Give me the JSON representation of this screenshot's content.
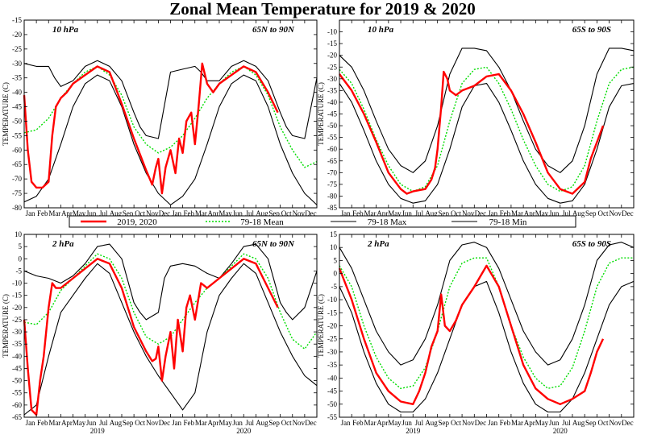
{
  "title": "Zonal Mean Temperature for 2019 & 2020",
  "legend": [
    {
      "label": "2019, 2020",
      "color": "#ff0000",
      "style": "solid-thick"
    },
    {
      "label": "79-18 Mean",
      "color": "#00dd00",
      "style": "dotted"
    },
    {
      "label": "79-18 Max",
      "color": "#000000",
      "style": "solid"
    },
    {
      "label": "79-18 Min",
      "color": "#000000",
      "style": "solid"
    }
  ],
  "colors": {
    "obs": "#ff0000",
    "mean": "#00dd00",
    "max": "#000000",
    "min": "#000000"
  },
  "months": [
    "Jan",
    "Feb",
    "Mar",
    "Apr",
    "May",
    "Jun",
    "Jul",
    "Aug",
    "Sep",
    "Oct",
    "Nov",
    "Dec",
    "Jan",
    "Feb",
    "Mar",
    "Apr",
    "May",
    "Jun",
    "Jul",
    "Aug",
    "Sep",
    "Oct",
    "Nov",
    "Dec"
  ],
  "years": [
    "2019",
    "2020"
  ],
  "chart_data": [
    {
      "type": "line",
      "level": "10 hPa",
      "region": "65N to 90N",
      "ylabel": "TEMPERATURE (C)",
      "ylim": [
        -80,
        -15
      ],
      "yticks": [
        -15,
        -20,
        -25,
        -30,
        -35,
        -40,
        -45,
        -50,
        -55,
        -60,
        -65,
        -70,
        -75,
        -80
      ],
      "x_unit": "month index (0 = 1 Jan 2019, 24 = 31 Dec 2020)",
      "series": [
        {
          "name": "79-18 Max",
          "x": [
            0,
            1,
            2,
            2.5,
            3,
            4,
            5,
            6,
            7,
            8,
            9,
            9.5,
            10,
            11,
            12,
            13,
            14,
            14.5,
            15,
            16,
            17,
            18,
            19,
            20,
            21,
            21.5,
            22,
            23,
            24
          ],
          "y": [
            -30,
            -31,
            -31,
            -35,
            -38,
            -36,
            -31,
            -29,
            -31,
            -36,
            -47,
            -52,
            -55,
            -56,
            -33,
            -32,
            -31,
            -33,
            -36,
            -36,
            -31,
            -29,
            -31,
            -36,
            -47,
            -52,
            -55,
            -56,
            -35
          ]
        },
        {
          "name": "79-18 Min",
          "x": [
            0,
            1,
            2,
            3,
            4,
            5,
            6,
            7,
            8,
            9,
            10,
            11,
            12,
            13,
            14,
            15,
            16,
            17,
            18,
            19,
            20,
            21,
            22,
            23,
            24
          ],
          "y": [
            -78,
            -76,
            -70,
            -58,
            -45,
            -37,
            -34,
            -36,
            -45,
            -58,
            -68,
            -75,
            -79,
            -76,
            -70,
            -58,
            -45,
            -37,
            -34,
            -36,
            -45,
            -58,
            -68,
            -75,
            -79
          ]
        },
        {
          "name": "79-18 Mean",
          "x": [
            0,
            1,
            2,
            3,
            4,
            5,
            6,
            7,
            8,
            9,
            10,
            11,
            12,
            13,
            14,
            15,
            16,
            17,
            18,
            19,
            20,
            21,
            22,
            23,
            24
          ],
          "y": [
            -54,
            -53,
            -49,
            -42,
            -37,
            -33,
            -31,
            -34,
            -41,
            -52,
            -58,
            -61,
            -59,
            -55,
            -49,
            -42,
            -37,
            -33,
            -31,
            -34,
            -41,
            -52,
            -60,
            -66,
            -64
          ]
        },
        {
          "name": "2019, 2020",
          "x": [
            0,
            0.3,
            0.6,
            1,
            1.5,
            2,
            2.3,
            2.6,
            3,
            3.5,
            4,
            5,
            6,
            7,
            8,
            9,
            10,
            10.5,
            10.8,
            11,
            11.3,
            11.6,
            12,
            12.4,
            12.7,
            13,
            13.3,
            13.7,
            14,
            14.3,
            14.6,
            15,
            15.5,
            16,
            17,
            18,
            19,
            20,
            20.8
          ],
          "y": [
            -41,
            -60,
            -71,
            -73,
            -73,
            -71,
            -55,
            -45,
            -42,
            -40,
            -37,
            -34,
            -31,
            -33,
            -44,
            -56,
            -67,
            -72,
            -66,
            -63,
            -75,
            -66,
            -60,
            -68,
            -56,
            -61,
            -50,
            -47,
            -58,
            -45,
            -30,
            -37,
            -40,
            -37,
            -34,
            -31,
            -33,
            -40,
            -47
          ]
        }
      ]
    },
    {
      "type": "line",
      "level": "10 hPa",
      "region": "65S to 90S",
      "ylabel": "TEMPERATURE (C)",
      "ylim": [
        -85,
        -5
      ],
      "yticks": [
        -10,
        -15,
        -20,
        -25,
        -30,
        -35,
        -40,
        -45,
        -50,
        -55,
        -60,
        -65,
        -70,
        -75,
        -80,
        -85
      ],
      "x_unit": "month index (0 = 1 Jan 2019, 24 = 31 Dec 2020)",
      "series": [
        {
          "name": "79-18 Max",
          "x": [
            0,
            1,
            2,
            3,
            4,
            5,
            6,
            7,
            8,
            9,
            10,
            11,
            12,
            13,
            14,
            15,
            16,
            17,
            18,
            19,
            20,
            21,
            22,
            23,
            24
          ],
          "y": [
            -20,
            -25,
            -35,
            -48,
            -60,
            -67,
            -70,
            -65,
            -50,
            -28,
            -17,
            -17,
            -18,
            -25,
            -35,
            -48,
            -60,
            -67,
            -70,
            -65,
            -50,
            -28,
            -17,
            -17,
            -18
          ]
        },
        {
          "name": "79-18 Min",
          "x": [
            0,
            1,
            2,
            3,
            4,
            5,
            6,
            7,
            8,
            9,
            10,
            11,
            12,
            13,
            14,
            15,
            16,
            17,
            18,
            19,
            20,
            21,
            22,
            23,
            24
          ],
          "y": [
            -32,
            -40,
            -52,
            -65,
            -75,
            -81,
            -83,
            -82,
            -75,
            -60,
            -42,
            -33,
            -32,
            -40,
            -52,
            -65,
            -75,
            -81,
            -83,
            -82,
            -75,
            -60,
            -42,
            -33,
            -32
          ]
        },
        {
          "name": "79-18 Mean",
          "x": [
            0,
            1,
            2,
            3,
            4,
            5,
            6,
            7,
            8,
            9,
            10,
            11,
            12,
            13,
            14,
            15,
            16,
            17,
            18,
            19,
            20,
            21,
            22,
            23,
            24
          ],
          "y": [
            -26,
            -32,
            -43,
            -56,
            -67,
            -75,
            -78,
            -76,
            -67,
            -48,
            -32,
            -26,
            -25,
            -32,
            -43,
            -56,
            -67,
            -75,
            -78,
            -76,
            -67,
            -48,
            -32,
            -26,
            -25
          ]
        },
        {
          "name": "2019, 2020",
          "x": [
            0,
            1,
            2,
            3,
            4,
            5,
            5.5,
            6,
            7,
            7.5,
            7.8,
            8,
            8.3,
            8.5,
            8.8,
            9,
            9.5,
            10,
            11,
            12,
            13,
            14,
            15,
            16,
            17,
            18,
            19,
            20,
            20.5,
            21,
            21.5
          ],
          "y": [
            -28,
            -35,
            -45,
            -57,
            -70,
            -77,
            -79,
            -78,
            -77,
            -73,
            -68,
            -60,
            -42,
            -27,
            -30,
            -35,
            -37,
            -35,
            -33,
            -29,
            -28,
            -35,
            -45,
            -57,
            -70,
            -77,
            -79,
            -74,
            -64,
            -57,
            -50
          ]
        }
      ]
    },
    {
      "type": "line",
      "level": "2 hPa",
      "region": "65N to 90N",
      "ylabel": "TEMPERATURE (C)",
      "ylim": [
        -65,
        10
      ],
      "yticks": [
        10,
        5,
        0,
        -5,
        -10,
        -15,
        -20,
        -25,
        -30,
        -35,
        -40,
        -45,
        -50,
        -55,
        -60,
        -65
      ],
      "x_unit": "month index (0 = 1 Jan 2019, 24 = 31 Dec 2020)",
      "series": [
        {
          "name": "79-18 Max",
          "x": [
            0,
            1,
            2,
            3,
            4,
            5,
            6,
            7,
            8,
            9,
            9.5,
            10,
            11,
            11.5,
            12,
            13,
            14,
            15,
            16,
            17,
            18,
            19,
            20,
            21,
            21.5,
            22,
            23,
            24
          ],
          "y": [
            -5,
            -7,
            -8,
            -10,
            -7,
            -2,
            5,
            6,
            0,
            -18,
            -22,
            -25,
            -22,
            -8,
            -3,
            -2,
            -3,
            -6,
            -8,
            -2,
            5,
            6,
            0,
            -18,
            -22,
            -25,
            -20,
            -5
          ]
        },
        {
          "name": "79-18 Min",
          "x": [
            0,
            1,
            2,
            3,
            4,
            5,
            6,
            7,
            8,
            9,
            10,
            11,
            12,
            13,
            14,
            15,
            16,
            17,
            18,
            19,
            20,
            21,
            22,
            23,
            24
          ],
          "y": [
            -64,
            -60,
            -40,
            -22,
            -15,
            -8,
            -2,
            -6,
            -18,
            -30,
            -40,
            -48,
            -55,
            -62,
            -55,
            -30,
            -15,
            -8,
            -2,
            -6,
            -18,
            -30,
            -40,
            -48,
            -52
          ]
        },
        {
          "name": "79-18 Mean",
          "x": [
            0,
            1,
            2,
            3,
            4,
            5,
            6,
            7,
            8,
            9,
            10,
            11,
            12,
            13,
            14,
            15,
            16,
            17,
            18,
            19,
            20,
            21,
            22,
            23,
            24
          ],
          "y": [
            -26,
            -27,
            -22,
            -13,
            -8,
            -3,
            2,
            0,
            -8,
            -22,
            -32,
            -35,
            -32,
            -25,
            -18,
            -12,
            -8,
            -3,
            2,
            0,
            -8,
            -22,
            -33,
            -37,
            -30
          ]
        },
        {
          "name": "2019, 2020",
          "x": [
            0,
            0.3,
            0.6,
            1,
            1.3,
            1.6,
            2,
            2.3,
            2.6,
            3,
            4,
            5,
            6,
            7,
            8,
            9,
            10,
            10.5,
            10.8,
            11,
            11.3,
            11.6,
            12,
            12.3,
            12.6,
            13,
            13.3,
            13.6,
            14,
            14.5,
            15,
            16,
            17,
            18,
            19,
            20,
            20.8
          ],
          "y": [
            -25,
            -45,
            -62,
            -64,
            -50,
            -40,
            -20,
            -10,
            -12,
            -12,
            -8,
            -4,
            0,
            -2,
            -12,
            -28,
            -38,
            -42,
            -41,
            -36,
            -50,
            -40,
            -30,
            -45,
            -25,
            -38,
            -20,
            -15,
            -25,
            -10,
            -12,
            -8,
            -4,
            0,
            -2,
            -12,
            -20
          ]
        }
      ]
    },
    {
      "type": "line",
      "level": "2 hPa",
      "region": "65S to 90S",
      "ylabel": "TEMPERATURE (C)",
      "ylim": [
        -55,
        15
      ],
      "yticks": [
        15,
        10,
        5,
        0,
        -5,
        -10,
        -15,
        -20,
        -25,
        -30,
        -35,
        -40,
        -45,
        -50,
        -55
      ],
      "x_unit": "month index (0 = 1 Jan 2019, 24 = 31 Dec 2020)",
      "series": [
        {
          "name": "79-18 Max",
          "x": [
            0,
            1,
            2,
            3,
            4,
            5,
            6,
            7,
            8,
            9,
            10,
            11,
            12,
            13,
            14,
            15,
            16,
            17,
            18,
            19,
            20,
            21,
            22,
            23,
            24
          ],
          "y": [
            10,
            2,
            -10,
            -22,
            -30,
            -35,
            -33,
            -25,
            -12,
            5,
            11,
            12,
            10,
            2,
            -10,
            -22,
            -30,
            -35,
            -33,
            -25,
            -12,
            5,
            11,
            12,
            10
          ]
        },
        {
          "name": "79-18 Min",
          "x": [
            0,
            1,
            2,
            3,
            4,
            5,
            6,
            7,
            8,
            9,
            10,
            11,
            12,
            13,
            14,
            15,
            16,
            17,
            18,
            19,
            20,
            21,
            22,
            23,
            24
          ],
          "y": [
            -5,
            -15,
            -30,
            -42,
            -50,
            -53,
            -53,
            -48,
            -38,
            -25,
            -12,
            -5,
            -3,
            -15,
            -30,
            -42,
            -50,
            -53,
            -53,
            -48,
            -38,
            -25,
            -12,
            -5,
            -3
          ]
        },
        {
          "name": "79-18 Mean",
          "x": [
            0,
            1,
            2,
            3,
            4,
            5,
            6,
            7,
            8,
            9,
            10,
            11,
            12,
            13,
            14,
            15,
            16,
            17,
            18,
            19,
            20,
            21,
            22,
            23,
            24
          ],
          "y": [
            3,
            -5,
            -20,
            -32,
            -40,
            -44,
            -43,
            -36,
            -22,
            -5,
            4,
            6,
            6,
            -5,
            -20,
            -32,
            -40,
            -44,
            -43,
            -36,
            -22,
            -5,
            4,
            6,
            6
          ]
        },
        {
          "name": "2019, 2020",
          "x": [
            0,
            1,
            2,
            3,
            4,
            5,
            6,
            6.5,
            7,
            7.5,
            8,
            8.3,
            8.6,
            9,
            9.5,
            10,
            11,
            12,
            13,
            14,
            15,
            16,
            17,
            18,
            19,
            20,
            20.5,
            21,
            21.5
          ],
          "y": [
            2,
            -10,
            -25,
            -38,
            -45,
            -49,
            -50,
            -45,
            -38,
            -28,
            -22,
            -8,
            -20,
            -22,
            -18,
            -12,
            -5,
            3,
            -5,
            -20,
            -35,
            -44,
            -48,
            -50,
            -48,
            -45,
            -38,
            -30,
            -25
          ]
        }
      ]
    }
  ]
}
